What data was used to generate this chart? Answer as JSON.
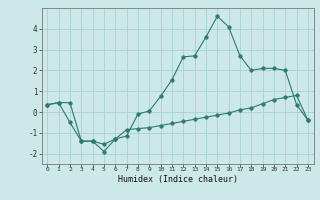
{
  "xlabel": "Humidex (Indice chaleur)",
  "background_color": "#cce8e8",
  "line_color": "#2d7a6e",
  "grid_color": "#a8d0d0",
  "x_ticks": [
    0,
    1,
    2,
    3,
    4,
    5,
    6,
    7,
    8,
    9,
    10,
    11,
    12,
    13,
    14,
    15,
    16,
    17,
    18,
    19,
    20,
    21,
    22,
    23
  ],
  "ylim": [
    -2.5,
    5.0
  ],
  "xlim": [
    -0.5,
    23.5
  ],
  "yticks": [
    -2,
    -1,
    0,
    1,
    2,
    3,
    4
  ],
  "line1_x": [
    0,
    1,
    2,
    3,
    4,
    5,
    6,
    7,
    8,
    9,
    10,
    11,
    12,
    13,
    14,
    15,
    16,
    17,
    18,
    19,
    20,
    21,
    22,
    23
  ],
  "line1_y": [
    0.35,
    0.45,
    0.45,
    -1.4,
    -1.4,
    -1.55,
    -1.3,
    -0.85,
    -0.8,
    -0.75,
    -0.65,
    -0.55,
    -0.45,
    -0.35,
    -0.25,
    -0.15,
    -0.05,
    0.1,
    0.2,
    0.4,
    0.6,
    0.7,
    0.8,
    -0.4
  ],
  "line2_x": [
    0,
    1,
    2,
    3,
    4,
    5,
    6,
    7,
    8,
    9,
    10,
    11,
    12,
    13,
    14,
    15,
    16,
    17,
    18,
    19,
    20,
    21,
    22,
    23
  ],
  "line2_y": [
    0.35,
    0.45,
    -0.5,
    -1.4,
    -1.4,
    -1.9,
    -1.3,
    -1.15,
    -0.1,
    0.05,
    0.75,
    1.55,
    2.65,
    2.7,
    3.6,
    4.6,
    4.1,
    2.7,
    2.0,
    2.1,
    2.1,
    2.0,
    0.35,
    -0.4
  ]
}
